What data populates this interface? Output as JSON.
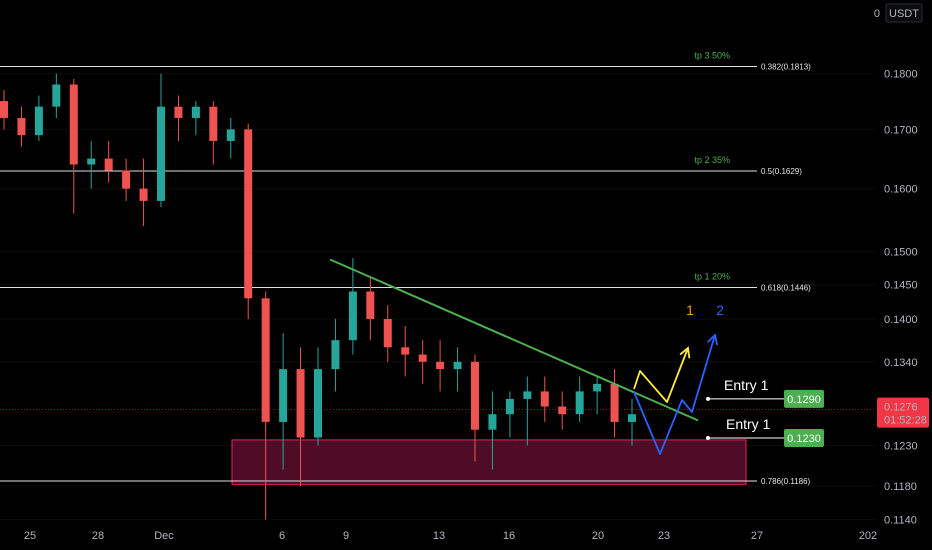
{
  "currency": "USDT",
  "currency_menu_glyph": "0",
  "colors": {
    "up": "#26a69a",
    "down": "#ef5350",
    "zone_fill": "#5c0e2e",
    "zone_stroke": "#e91e63",
    "trendline": "#4caf50",
    "path1": "#ffeb3b",
    "path2": "#2962ff",
    "label1": "#ff9800",
    "label2": "#2962ff",
    "entry_badge": "#4caf50",
    "price_badge": "#f23645",
    "fib_line": "#e0e0e0"
  },
  "chart_data": {
    "type": "candlestick",
    "title": "",
    "xlabel": "",
    "ylabel": "",
    "scale": "log",
    "ylim": [
      0.1128,
      0.1925
    ],
    "price_ticks": [
      "0.1800",
      "0.1700",
      "0.1600",
      "0.1500",
      "0.1450",
      "0.1400",
      "0.1340",
      "0.1230",
      "0.1180",
      "0.1140"
    ],
    "date_ticks": [
      "25",
      "28",
      "Dec",
      "6",
      "9",
      "13",
      "16",
      "20",
      "23",
      "27",
      "202"
    ],
    "last_price": "0.1276",
    "countdown": "01:52:28",
    "fib_levels": [
      {
        "label": "0.382(0.1813)",
        "price": 0.1813,
        "target": "tp 3 50%"
      },
      {
        "label": "0.5(0.1629)",
        "price": 0.1629,
        "target": "tp 2 35%"
      },
      {
        "label": "0.618(0.1446)",
        "price": 0.1446,
        "target": "tp 1 20%"
      },
      {
        "label": "0.786(0.1186)",
        "price": 0.1186,
        "target": ""
      }
    ],
    "demand_zone": {
      "top": 0.1237,
      "bottom": 0.1182
    },
    "trendline": [
      {
        "date": "8 Dec",
        "price": 0.1488
      },
      {
        "date": "24 Dec",
        "price": 0.1262
      }
    ],
    "entries": [
      {
        "label": "Entry 1",
        "price": "0.1290"
      },
      {
        "label": "Entry 1",
        "price": "0.1230"
      }
    ],
    "scenario_labels": [
      "1",
      "2"
    ],
    "series": [
      {
        "name": "",
        "values": [
          [
            0.175,
            0.177,
            0.17,
            0.172
          ],
          [
            0.172,
            0.174,
            0.167,
            0.169
          ],
          [
            0.169,
            0.176,
            0.168,
            0.174
          ],
          [
            0.174,
            0.18,
            0.172,
            0.178
          ],
          [
            0.178,
            0.179,
            0.156,
            0.164
          ],
          [
            0.164,
            0.168,
            0.16,
            0.165
          ],
          [
            0.165,
            0.168,
            0.161,
            0.163
          ],
          [
            0.163,
            0.165,
            0.158,
            0.16
          ],
          [
            0.16,
            0.165,
            0.154,
            0.158
          ],
          [
            0.158,
            0.18,
            0.157,
            0.174
          ],
          [
            0.174,
            0.176,
            0.168,
            0.172
          ],
          [
            0.172,
            0.175,
            0.169,
            0.174
          ],
          [
            0.174,
            0.175,
            0.164,
            0.168
          ],
          [
            0.168,
            0.172,
            0.165,
            0.17
          ],
          [
            0.17,
            0.171,
            0.14,
            0.143
          ],
          [
            0.143,
            0.144,
            0.114,
            0.126
          ],
          [
            0.126,
            0.138,
            0.12,
            0.133
          ],
          [
            0.133,
            0.136,
            0.118,
            0.124
          ],
          [
            0.124,
            0.136,
            0.123,
            0.133
          ],
          [
            0.133,
            0.14,
            0.13,
            0.137
          ],
          [
            0.137,
            0.149,
            0.135,
            0.144
          ],
          [
            0.144,
            0.146,
            0.137,
            0.14
          ],
          [
            0.14,
            0.142,
            0.134,
            0.136
          ],
          [
            0.136,
            0.139,
            0.132,
            0.135
          ],
          [
            0.135,
            0.137,
            0.131,
            0.134
          ],
          [
            0.134,
            0.137,
            0.13,
            0.133
          ],
          [
            0.133,
            0.136,
            0.13,
            0.134
          ],
          [
            0.134,
            0.135,
            0.121,
            0.125
          ],
          [
            0.125,
            0.13,
            0.12,
            0.127
          ],
          [
            0.127,
            0.13,
            0.124,
            0.129
          ],
          [
            0.129,
            0.132,
            0.123,
            0.13
          ],
          [
            0.13,
            0.132,
            0.126,
            0.128
          ],
          [
            0.128,
            0.13,
            0.125,
            0.127
          ],
          [
            0.127,
            0.132,
            0.126,
            0.13
          ],
          [
            0.13,
            0.132,
            0.127,
            0.131
          ],
          [
            0.131,
            0.133,
            0.124,
            0.126
          ],
          [
            0.126,
            0.129,
            0.123,
            0.127
          ]
        ]
      }
    ]
  }
}
